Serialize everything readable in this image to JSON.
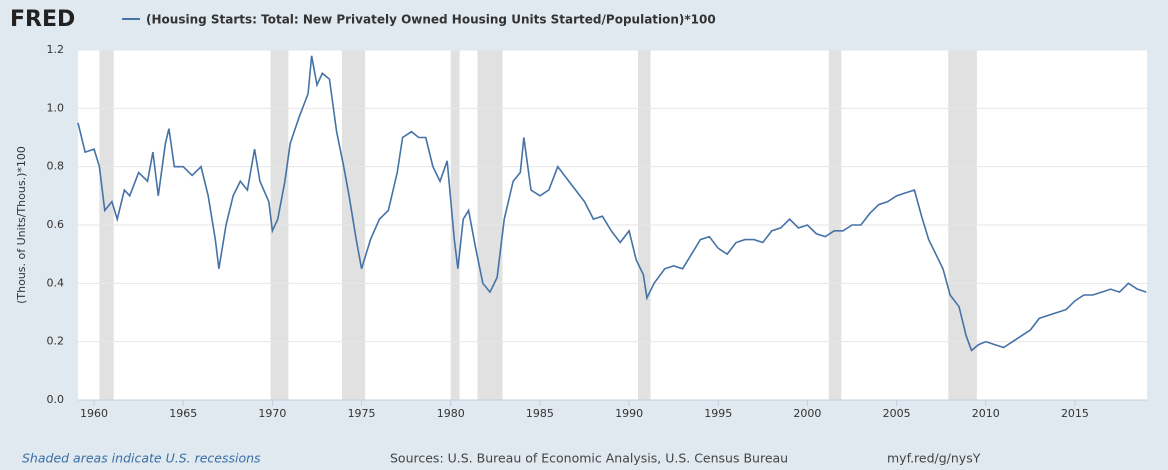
{
  "chart_data": {
    "type": "line",
    "logo": "FRED",
    "title": "(Housing Starts: Total: New Privately Owned Housing Units Started/Population)*100",
    "y_label": "(Thous. of Units/Thous.)*100",
    "note": "Shaded areas indicate U.S. recessions",
    "source": "Sources: U.S. Bureau of Economic Analysis, U.S. Census Bureau",
    "link": "myf.red/g/nysY",
    "xlim": [
      1959.1,
      2019.04
    ],
    "xticks": [
      1960,
      1965,
      1970,
      1975,
      1980,
      1985,
      1990,
      1995,
      2000,
      2005,
      2010,
      2015
    ],
    "ylim": [
      0,
      1.2
    ],
    "yticks": [
      {
        "value": 0,
        "label": "0.0"
      },
      0.2,
      0.4,
      0.6,
      0.8,
      {
        "value": 1,
        "label": "1.0"
      },
      1.2
    ],
    "grid": true,
    "recession_color": "#e1e1e1",
    "recessions": [
      [
        1960.3,
        1961.1
      ],
      [
        1969.9,
        1970.9
      ],
      [
        1973.9,
        1975.2
      ],
      [
        1980.0,
        1980.5
      ],
      [
        1981.5,
        1982.9
      ],
      [
        1990.5,
        1991.2
      ],
      [
        2001.2,
        2001.9
      ],
      [
        2007.9,
        2009.5
      ]
    ],
    "x": [
      1959.1,
      1959.5,
      1960.0,
      1960.3,
      1960.6,
      1961.0,
      1961.3,
      1961.7,
      1962.0,
      1962.5,
      1963.0,
      1963.3,
      1963.6,
      1964.0,
      1964.2,
      1964.5,
      1965.0,
      1965.5,
      1966.0,
      1966.4,
      1966.8,
      1967.0,
      1967.4,
      1967.8,
      1968.2,
      1968.6,
      1969.0,
      1969.3,
      1969.8,
      1970.0,
      1970.3,
      1970.7,
      1971.0,
      1971.5,
      1972.0,
      1972.2,
      1972.5,
      1972.8,
      1973.2,
      1973.6,
      1974.0,
      1974.3,
      1974.7,
      1975.0,
      1975.5,
      1976.0,
      1976.5,
      1977.0,
      1977.3,
      1977.8,
      1978.2,
      1978.6,
      1979.0,
      1979.4,
      1979.8,
      1980.2,
      1980.4,
      1980.7,
      1981.0,
      1981.4,
      1981.8,
      1982.2,
      1982.6,
      1983.0,
      1983.5,
      1983.9,
      1984.1,
      1984.5,
      1985.0,
      1985.5,
      1986.0,
      1986.5,
      1987.0,
      1987.5,
      1988.0,
      1988.5,
      1989.0,
      1989.5,
      1990.0,
      1990.4,
      1990.8,
      1991.0,
      1991.4,
      1992.0,
      1992.5,
      1993.0,
      1993.5,
      1994.0,
      1994.5,
      1995.0,
      1995.5,
      1996.0,
      1996.5,
      1997.0,
      1997.5,
      1998.0,
      1998.5,
      1999.0,
      1999.5,
      2000.0,
      2000.5,
      2001.0,
      2001.5,
      2002.0,
      2002.5,
      2003.0,
      2003.5,
      2004.0,
      2004.5,
      2005.0,
      2005.5,
      2006.0,
      2006.4,
      2006.8,
      2007.2,
      2007.6,
      2008.0,
      2008.5,
      2008.9,
      2009.2,
      2009.6,
      2010.0,
      2010.5,
      2011.0,
      2011.5,
      2012.0,
      2012.5,
      2013.0,
      2013.5,
      2014.0,
      2014.5,
      2015.0,
      2015.5,
      2016.0,
      2016.5,
      2017.0,
      2017.5,
      2018.0,
      2018.5,
      2019.0
    ],
    "series": [
      {
        "name": "(Housing Starts: Total: New Privately Owned Housing Units Started/Population)*100",
        "color": "#4572a7",
        "values": [
          0.95,
          0.85,
          0.86,
          0.8,
          0.65,
          0.68,
          0.62,
          0.72,
          0.7,
          0.78,
          0.75,
          0.85,
          0.7,
          0.88,
          0.93,
          0.8,
          0.8,
          0.77,
          0.8,
          0.7,
          0.55,
          0.45,
          0.6,
          0.7,
          0.75,
          0.72,
          0.86,
          0.75,
          0.68,
          0.58,
          0.62,
          0.75,
          0.88,
          0.97,
          1.05,
          1.18,
          1.08,
          1.12,
          1.1,
          0.92,
          0.8,
          0.7,
          0.55,
          0.45,
          0.55,
          0.62,
          0.65,
          0.78,
          0.9,
          0.92,
          0.9,
          0.9,
          0.8,
          0.75,
          0.82,
          0.55,
          0.45,
          0.62,
          0.65,
          0.52,
          0.4,
          0.37,
          0.42,
          0.62,
          0.75,
          0.78,
          0.9,
          0.72,
          0.7,
          0.72,
          0.8,
          0.76,
          0.72,
          0.68,
          0.62,
          0.63,
          0.58,
          0.54,
          0.58,
          0.48,
          0.43,
          0.35,
          0.4,
          0.45,
          0.46,
          0.45,
          0.5,
          0.55,
          0.56,
          0.52,
          0.5,
          0.54,
          0.55,
          0.55,
          0.54,
          0.58,
          0.59,
          0.62,
          0.59,
          0.6,
          0.57,
          0.56,
          0.58,
          0.58,
          0.6,
          0.6,
          0.64,
          0.67,
          0.68,
          0.7,
          0.71,
          0.72,
          0.63,
          0.55,
          0.5,
          0.45,
          0.36,
          0.32,
          0.22,
          0.17,
          0.19,
          0.2,
          0.19,
          0.18,
          0.2,
          0.22,
          0.24,
          0.28,
          0.29,
          0.3,
          0.31,
          0.34,
          0.36,
          0.36,
          0.37,
          0.38,
          0.37,
          0.4,
          0.38,
          0.37
        ]
      }
    ]
  }
}
